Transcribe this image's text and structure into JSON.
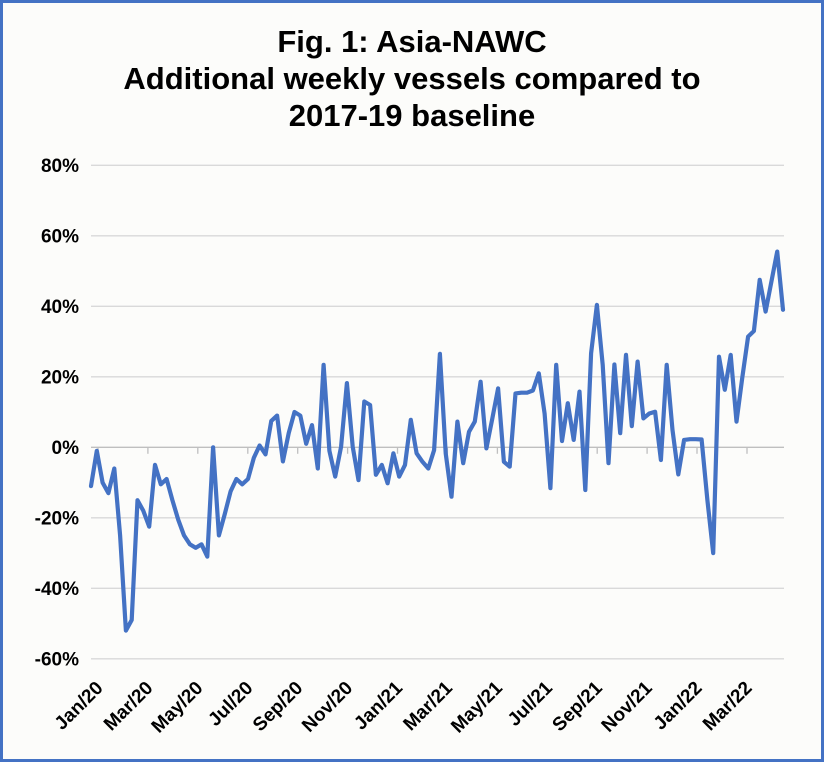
{
  "figure": {
    "border_color": "#4472C4",
    "background_color": "#FCFCFA",
    "text_color": "#000000"
  },
  "chart_data": {
    "type": "line",
    "title": "Fig. 1: Asia-NAWC\nAdditional weekly vessels compared to\n2017-19 baseline",
    "xlabel": "",
    "ylabel": "",
    "legend": "none",
    "grid": "horizontal",
    "line_color": "#4472C4",
    "gridline_color": "#D9D9D9",
    "axis_color": "#BFBFBF",
    "ylim": [
      -60,
      80
    ],
    "y_ticks": [
      80,
      60,
      40,
      20,
      0,
      -20,
      -40,
      -60
    ],
    "y_tick_labels": [
      "80%",
      "60%",
      "40%",
      "20%",
      "0%",
      "-20%",
      "-40%",
      "-60%"
    ],
    "x_tick_labels": [
      "Jan/20",
      "Mar/20",
      "May/20",
      "Jul/20",
      "Sep/20",
      "Nov/20",
      "Jan/21",
      "Mar/21",
      "May/21",
      "Jul/21",
      "Sep/21",
      "Nov/21",
      "Jan/22",
      "Mar/22"
    ],
    "x_unit": "weekly observations, Jan 2020 - Apr 2022",
    "values": [
      -11,
      -1,
      -10,
      -13,
      -6,
      -25,
      -52,
      -49,
      -15,
      -18,
      -22.5,
      -5,
      -10.5,
      -9,
      -15,
      -20.5,
      -25,
      -27.5,
      -28.5,
      -27.5,
      -31,
      0,
      -25,
      -19,
      -12.5,
      -9,
      -10.5,
      -9,
      -3,
      0.5,
      -2,
      7.5,
      9,
      -4,
      4,
      10,
      9,
      1,
      6.3,
      -6,
      23.4,
      -1,
      -8.3,
      0.2,
      18.2,
      0.2,
      -9.3,
      13,
      12,
      -7.8,
      -5,
      -10.2,
      -1.7,
      -8.3,
      -5,
      7.8,
      -1.7,
      -4.1,
      -6,
      -0.8,
      26.5,
      -1.7,
      -14,
      7.3,
      -4.5,
      4.4,
      7.3,
      18.6,
      -0.3,
      8,
      16.7,
      -4.1,
      -5.5,
      15.3,
      15.5,
      15.5,
      16.1,
      21,
      9.6,
      -11.6,
      23.4,
      1.8,
      12.5,
      2.1,
      15.8,
      -12.1,
      26.7,
      40.4,
      23.4,
      -4.5,
      23.5,
      4,
      26.2,
      6,
      24.3,
      8.2,
      9.6,
      10.1,
      -3.6,
      23.4,
      4.9,
      -7.7,
      2.1,
      2.3,
      2.3,
      2.2,
      -15,
      -30,
      25.7,
      16.3,
      26.2,
      7.3,
      19.8,
      31.4,
      33,
      47.5,
      38.5,
      47,
      55.5,
      39
    ]
  }
}
